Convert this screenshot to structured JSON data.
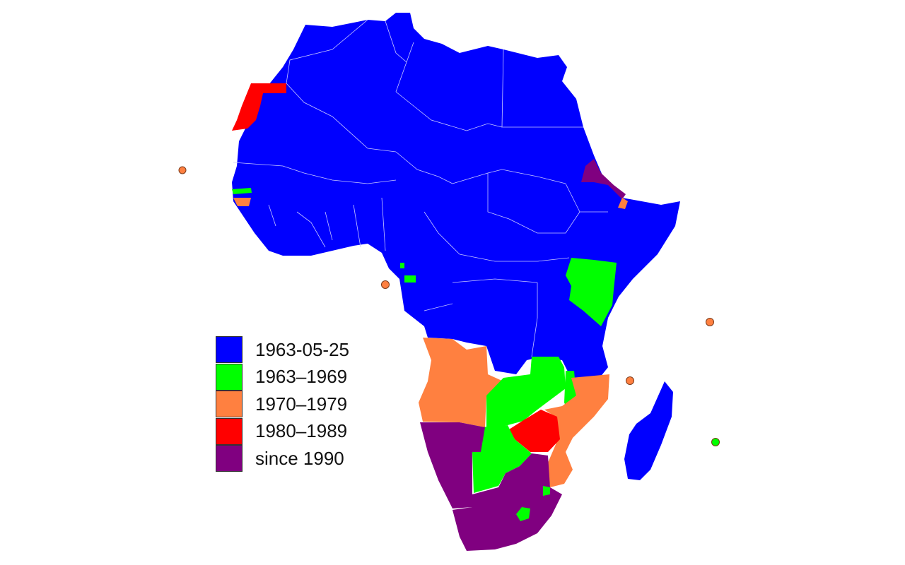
{
  "map": {
    "colors": {
      "founding": "#0000ff",
      "sixties": "#00ff00",
      "seventies": "#ff8040",
      "eighties": "#ff0000",
      "nineties": "#800080",
      "border": "#c8c8ff"
    },
    "legend": [
      {
        "label": "1963-05-25",
        "color": "#0000ff"
      },
      {
        "label": "1963–1969",
        "color": "#00ff00"
      },
      {
        "label": "1970–1979",
        "color": "#ff8040"
      },
      {
        "label": "1980–1989",
        "color": "#ff0000"
      },
      {
        "label": "since 1990",
        "color": "#800080"
      }
    ]
  }
}
